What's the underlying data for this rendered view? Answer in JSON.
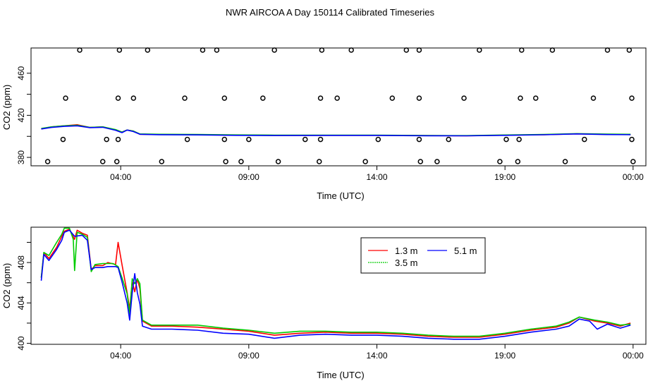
{
  "title": "NWR AIRCOA A  Day 150114  Calibrated Timeseries",
  "colors": {
    "s1": "#ff0000",
    "s2": "#00cc00",
    "s3": "#0000ff",
    "axis": "#000000"
  },
  "chart_data": [
    {
      "type": "scatter",
      "xlabel": "Time (UTC)",
      "ylabel": "CO2 (ppm)",
      "xlim": [
        0.5,
        24.5
      ],
      "ylim": [
        372,
        484
      ],
      "x_ticks": [
        4,
        9,
        14,
        19,
        24
      ],
      "x_tick_labels": [
        "04:00",
        "09:00",
        "14:00",
        "19:00",
        "00:00"
      ],
      "y_ticks": [
        380,
        420,
        460
      ],
      "y_tick_labels": [
        "380",
        "420",
        "460"
      ],
      "y_ticks_minor": [
        400,
        440
      ],
      "points": {
        "levels": [
          376.0,
          397.1,
          436.3,
          482.0
        ],
        "x": [
          [
            1.15,
            3.3,
            3.85,
            5.6,
            8.1,
            8.7,
            10.15,
            11.75,
            13.55,
            15.7,
            16.35,
            18.8,
            19.5,
            21.35,
            24.0
          ],
          [
            1.75,
            3.45,
            3.9,
            6.6,
            8.05,
            9.0,
            11.2,
            11.8,
            14.05,
            15.65,
            16.8,
            19.05,
            19.55,
            22.1,
            23.95
          ],
          [
            1.85,
            3.9,
            4.5,
            6.5,
            8.05,
            9.55,
            11.8,
            12.45,
            14.6,
            15.65,
            17.4,
            19.6,
            20.2,
            22.45,
            23.95
          ],
          [
            2.4,
            3.95,
            5.05,
            7.2,
            7.75,
            10.0,
            11.85,
            13.0,
            15.15,
            15.65,
            18.0,
            19.65,
            20.85,
            23.0,
            23.85
          ]
        ]
      },
      "series": [
        {
          "name": "1.3 m",
          "color": "#ff0000",
          "points": [
            [
              0.9,
              407
            ],
            [
              1.3,
              409
            ],
            [
              1.8,
              410
            ],
            [
              2.3,
              411
            ],
            [
              2.8,
              408.5
            ],
            [
              3.3,
              409
            ],
            [
              3.8,
              406
            ],
            [
              4.05,
              404
            ],
            [
              4.25,
              406
            ],
            [
              4.5,
              405
            ],
            [
              4.75,
              402
            ],
            [
              5.5,
              401.8
            ],
            [
              7,
              401.6
            ],
            [
              8.5,
              401.2
            ],
            [
              10,
              400.9
            ],
            [
              12,
              401
            ],
            [
              14,
              401
            ],
            [
              16,
              400.7
            ],
            [
              17.5,
              400.6
            ],
            [
              19,
              401.1
            ],
            [
              20.5,
              401.6
            ],
            [
              21.8,
              402.4
            ],
            [
              23,
              401.9
            ],
            [
              23.9,
              401.7
            ]
          ]
        },
        {
          "name": "3.5 m",
          "color": "#00cc00",
          "points": [
            [
              0.9,
              407.5
            ],
            [
              1.3,
              409
            ],
            [
              1.8,
              410
            ],
            [
              2.3,
              410.5
            ],
            [
              2.8,
              408.5
            ],
            [
              3.3,
              409
            ],
            [
              3.8,
              406.5
            ],
            [
              4.05,
              404
            ],
            [
              4.25,
              406
            ],
            [
              4.5,
              405
            ],
            [
              4.75,
              402.3
            ],
            [
              5.5,
              402
            ],
            [
              7,
              401.8
            ],
            [
              8.5,
              401.4
            ],
            [
              10,
              401.2
            ],
            [
              12,
              401.2
            ],
            [
              14,
              401.1
            ],
            [
              16,
              400.8
            ],
            [
              17.5,
              400.7
            ],
            [
              19,
              401.3
            ],
            [
              20.5,
              401.8
            ],
            [
              21.8,
              402.6
            ],
            [
              23,
              402.1
            ],
            [
              23.9,
              402
            ]
          ]
        },
        {
          "name": "5.1 m",
          "color": "#0000ff",
          "points": [
            [
              0.9,
              407
            ],
            [
              1.3,
              408.5
            ],
            [
              1.8,
              409.5
            ],
            [
              2.3,
              410
            ],
            [
              2.8,
              408.3
            ],
            [
              3.3,
              408.6
            ],
            [
              3.8,
              405.8
            ],
            [
              4.05,
              403.5
            ],
            [
              4.25,
              406
            ],
            [
              4.5,
              404.5
            ],
            [
              4.75,
              402
            ],
            [
              5.5,
              401.6
            ],
            [
              7,
              401.4
            ],
            [
              8.5,
              401.0
            ],
            [
              10,
              400.8
            ],
            [
              12,
              400.9
            ],
            [
              14,
              400.9
            ],
            [
              16,
              400.6
            ],
            [
              17.5,
              400.5
            ],
            [
              19,
              401.0
            ],
            [
              20.5,
              401.5
            ],
            [
              21.8,
              402.3
            ],
            [
              23,
              401.7
            ],
            [
              23.9,
              401.6
            ]
          ]
        }
      ]
    },
    {
      "type": "line",
      "xlabel": "Time (UTC)",
      "ylabel": "CO2 (ppm)",
      "xlim": [
        0.5,
        24.5
      ],
      "ylim": [
        399.9,
        411.5
      ],
      "x_ticks": [
        4,
        9,
        14,
        19,
        24
      ],
      "x_tick_labels": [
        "04:00",
        "09:00",
        "14:00",
        "19:00",
        "00:00"
      ],
      "y_ticks": [
        400,
        404,
        408
      ],
      "y_tick_labels": [
        "400",
        "404",
        "408"
      ],
      "y_ticks_minor": [
        402,
        406,
        410
      ],
      "legend": {
        "position": "top-center",
        "entries": [
          "1.3 m",
          "5.1 m",
          "3.5 m"
        ]
      },
      "series": [
        {
          "name": "1.3 m",
          "color": "#ff0000",
          "points": [
            [
              0.9,
              406.5
            ],
            [
              1.0,
              409.0
            ],
            [
              1.2,
              408.4
            ],
            [
              1.5,
              409.5
            ],
            [
              1.7,
              410.6
            ],
            [
              1.8,
              411.1
            ],
            [
              2.0,
              411.3
            ],
            [
              2.2,
              410.3
            ],
            [
              2.3,
              411.2
            ],
            [
              2.5,
              410.9
            ],
            [
              2.7,
              410.7
            ],
            [
              2.85,
              407.3
            ],
            [
              3.0,
              407.7
            ],
            [
              3.3,
              407.7
            ],
            [
              3.5,
              408.0
            ],
            [
              3.8,
              407.8
            ],
            [
              3.9,
              410.0
            ],
            [
              4.05,
              407.8
            ],
            [
              4.25,
              405.0
            ],
            [
              4.35,
              403.4
            ],
            [
              4.45,
              406.1
            ],
            [
              4.55,
              405.1
            ],
            [
              4.65,
              406.4
            ],
            [
              4.75,
              405.4
            ],
            [
              4.85,
              402.2
            ],
            [
              5.2,
              401.7
            ],
            [
              6.0,
              401.7
            ],
            [
              7.0,
              401.6
            ],
            [
              8.0,
              401.4
            ],
            [
              9.0,
              401.2
            ],
            [
              10.0,
              400.8
            ],
            [
              11.0,
              401.0
            ],
            [
              12.0,
              401.1
            ],
            [
              13.0,
              401.0
            ],
            [
              14.0,
              401.0
            ],
            [
              15.0,
              400.9
            ],
            [
              16.0,
              400.7
            ],
            [
              17.0,
              400.6
            ],
            [
              18.0,
              400.6
            ],
            [
              19.0,
              400.9
            ],
            [
              20.0,
              401.3
            ],
            [
              21.0,
              401.6
            ],
            [
              21.5,
              402.0
            ],
            [
              21.9,
              402.6
            ],
            [
              22.5,
              402.2
            ],
            [
              23.0,
              402.0
            ],
            [
              23.5,
              401.7
            ],
            [
              23.9,
              402.0
            ]
          ]
        },
        {
          "name": "3.5 m",
          "color": "#00cc00",
          "points": [
            [
              0.9,
              406.5
            ],
            [
              1.0,
              409.0
            ],
            [
              1.2,
              408.7
            ],
            [
              1.5,
              410.0
            ],
            [
              1.7,
              410.8
            ],
            [
              1.8,
              411.4
            ],
            [
              2.0,
              411.4
            ],
            [
              2.15,
              410.3
            ],
            [
              2.2,
              407.2
            ],
            [
              2.3,
              411.0
            ],
            [
              2.5,
              410.8
            ],
            [
              2.7,
              410.5
            ],
            [
              2.85,
              407.1
            ],
            [
              3.0,
              407.8
            ],
            [
              3.3,
              407.9
            ],
            [
              3.5,
              407.9
            ],
            [
              3.7,
              407.9
            ],
            [
              3.9,
              407.6
            ],
            [
              4.05,
              406.5
            ],
            [
              4.25,
              404.9
            ],
            [
              4.35,
              402.9
            ],
            [
              4.45,
              406.4
            ],
            [
              4.55,
              405.9
            ],
            [
              4.65,
              406.4
            ],
            [
              4.75,
              405.9
            ],
            [
              4.85,
              402.3
            ],
            [
              5.2,
              401.8
            ],
            [
              6.0,
              401.8
            ],
            [
              7.0,
              401.8
            ],
            [
              8.0,
              401.5
            ],
            [
              9.0,
              401.3
            ],
            [
              10.0,
              401.0
            ],
            [
              11.0,
              401.2
            ],
            [
              12.0,
              401.2
            ],
            [
              13.0,
              401.1
            ],
            [
              14.0,
              401.1
            ],
            [
              15.0,
              401.0
            ],
            [
              16.0,
              400.8
            ],
            [
              17.0,
              400.7
            ],
            [
              18.0,
              400.7
            ],
            [
              19.0,
              401.0
            ],
            [
              20.0,
              401.4
            ],
            [
              21.0,
              401.7
            ],
            [
              21.5,
              402.1
            ],
            [
              21.9,
              402.6
            ],
            [
              22.5,
              402.3
            ],
            [
              23.0,
              402.1
            ],
            [
              23.5,
              401.8
            ],
            [
              23.9,
              401.9
            ]
          ]
        },
        {
          "name": "5.1 m",
          "color": "#0000ff",
          "points": [
            [
              0.9,
              406.2
            ],
            [
              1.0,
              408.8
            ],
            [
              1.2,
              408.2
            ],
            [
              1.5,
              409.3
            ],
            [
              1.7,
              410.2
            ],
            [
              1.8,
              411.0
            ],
            [
              2.0,
              411.2
            ],
            [
              2.2,
              410.6
            ],
            [
              2.5,
              410.7
            ],
            [
              2.7,
              410.2
            ],
            [
              2.85,
              407.3
            ],
            [
              3.0,
              407.5
            ],
            [
              3.3,
              407.5
            ],
            [
              3.5,
              407.6
            ],
            [
              3.8,
              407.6
            ],
            [
              3.9,
              407.5
            ],
            [
              4.05,
              406.1
            ],
            [
              4.25,
              404.0
            ],
            [
              4.35,
              402.3
            ],
            [
              4.45,
              405.0
            ],
            [
              4.55,
              406.9
            ],
            [
              4.65,
              405.0
            ],
            [
              4.75,
              403.9
            ],
            [
              4.85,
              401.7
            ],
            [
              5.2,
              401.4
            ],
            [
              6.0,
              401.4
            ],
            [
              7.0,
              401.3
            ],
            [
              8.0,
              401.0
            ],
            [
              9.0,
              400.9
            ],
            [
              10.0,
              400.5
            ],
            [
              11.0,
              400.8
            ],
            [
              12.0,
              400.9
            ],
            [
              13.0,
              400.8
            ],
            [
              14.0,
              400.8
            ],
            [
              15.0,
              400.7
            ],
            [
              16.0,
              400.5
            ],
            [
              17.0,
              400.4
            ],
            [
              18.0,
              400.4
            ],
            [
              19.0,
              400.7
            ],
            [
              20.0,
              401.1
            ],
            [
              21.0,
              401.4
            ],
            [
              21.5,
              401.7
            ],
            [
              21.9,
              402.4
            ],
            [
              22.3,
              402.2
            ],
            [
              22.6,
              401.4
            ],
            [
              23.0,
              401.9
            ],
            [
              23.5,
              401.5
            ],
            [
              23.9,
              401.8
            ]
          ]
        }
      ]
    }
  ]
}
